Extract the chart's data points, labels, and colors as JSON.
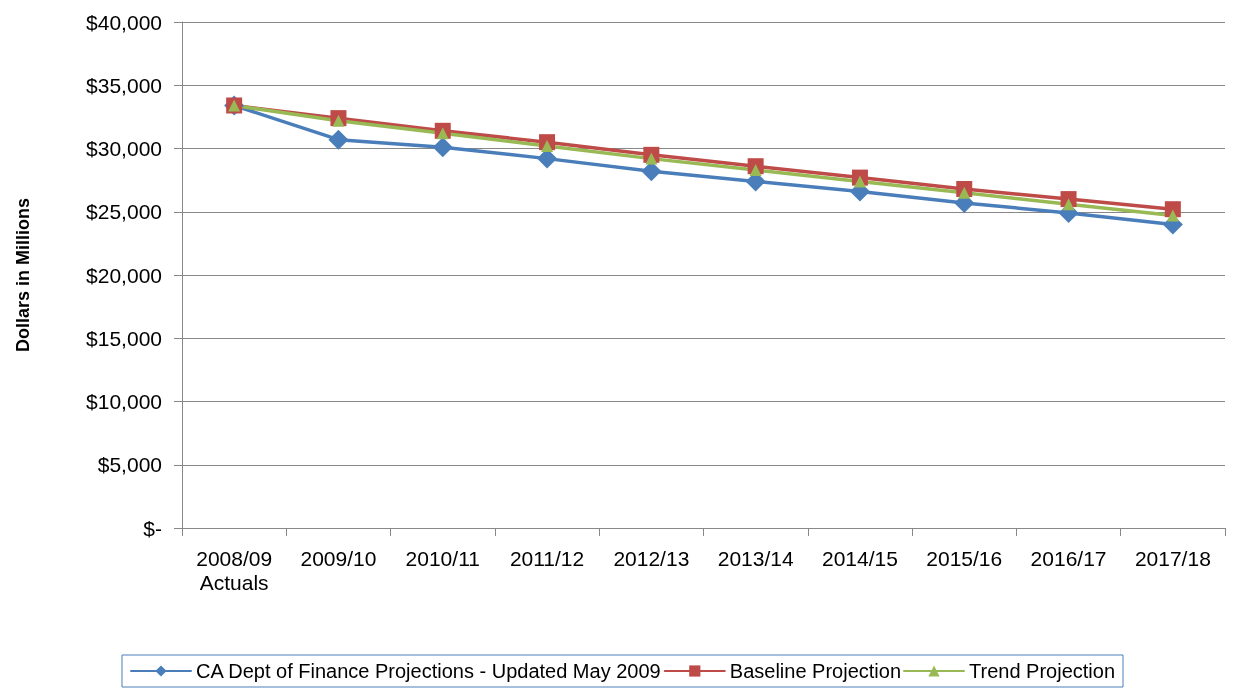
{
  "chart_data": {
    "type": "line",
    "ylabel": "Dollars in Millions",
    "categories": [
      "2008/09\nActuals",
      "2009/10",
      "2010/11",
      "2011/12",
      "2012/13",
      "2013/14",
      "2014/15",
      "2015/16",
      "2016/17",
      "2017/18"
    ],
    "series": [
      {
        "name": "CA Dept of Finance Projections - Updated May 2009",
        "color": "#4a7ebb",
        "marker": "diamond",
        "values": [
          33400,
          30700,
          30100,
          29200,
          28200,
          27400,
          26600,
          25700,
          24900,
          24000
        ]
      },
      {
        "name": "Baseline Projection",
        "color": "#be4b48",
        "marker": "square",
        "values": [
          33400,
          32400,
          31400,
          30500,
          29500,
          28600,
          27700,
          26800,
          26000,
          25200
        ]
      },
      {
        "name": "Trend Projection",
        "color": "#98b954",
        "marker": "triangle",
        "values": [
          33400,
          32200,
          31200,
          30200,
          29200,
          28300,
          27400,
          26500,
          25600,
          24700
        ]
      }
    ],
    "ylim": [
      0,
      40000
    ],
    "yticks": [
      {
        "value": 0,
        "label": "$-"
      },
      {
        "value": 5000,
        "label": "$5,000"
      },
      {
        "value": 10000,
        "label": "$10,000"
      },
      {
        "value": 15000,
        "label": "$15,000"
      },
      {
        "value": 20000,
        "label": "$20,000"
      },
      {
        "value": 25000,
        "label": "$25,000"
      },
      {
        "value": 30000,
        "label": "$30,000"
      },
      {
        "value": 35000,
        "label": "$35,000"
      },
      {
        "value": 40000,
        "label": "$40,000"
      }
    ],
    "grid": "y",
    "legend": "bottom",
    "line_style": "solid"
  }
}
